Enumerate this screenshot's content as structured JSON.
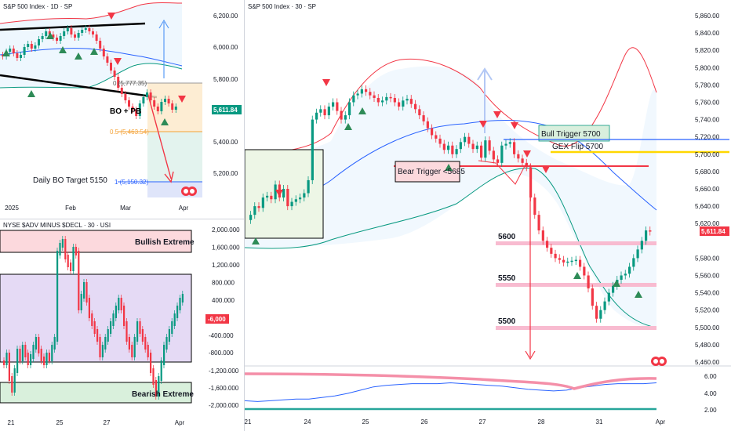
{
  "panes": {
    "daily": {
      "title": "S&P 500 Index · 1D · SP",
      "price_ticks": [
        "6,200.00",
        "6,000.00",
        "5,800.00",
        "5,400.00",
        "5,200.00"
      ],
      "time_ticks": [
        "2025",
        "Feb",
        "Mar",
        "Apr"
      ],
      "current_price": "5,611.84",
      "annotations": {
        "bo_pb": "BO + PB",
        "fib_0": "0 (5,777.35)",
        "fib_05": "0.5 (5,463.54)",
        "fib_1": "1 (5,150.32)",
        "target": "Daily BO Target 5150"
      }
    },
    "adv": {
      "title": "NYSE $ADV MINUS $DECL · 30 · USI",
      "value_ticks": [
        "2,000.000",
        "1,600.000",
        "1,200.000",
        "800.000",
        "400.000",
        "-400.000",
        "-800.000",
        "-1,200.000",
        "-1,600.000",
        "-2,000.000"
      ],
      "time_ticks": [
        "21",
        "25",
        "27",
        "Apr"
      ],
      "current_value": "-6,000",
      "zones": {
        "bullish": "Bullish Extreme",
        "bearish": "Bearish Extreme"
      }
    },
    "intraday": {
      "title": "S&P 500 Index · 30 · SP",
      "price_ticks": [
        "5,860.00",
        "5,840.00",
        "5,820.00",
        "5,800.00",
        "5,780.00",
        "5,760.00",
        "5,740.00",
        "5,720.00",
        "5,700.00",
        "5,680.00",
        "5,660.00",
        "5,640.00",
        "5,620.00",
        "5,580.00",
        "5,560.00",
        "5,540.00",
        "5,520.00",
        "5,500.00",
        "5,480.00",
        "5,460.00"
      ],
      "osc_ticks": [
        "6.00",
        "4.00",
        "2.00"
      ],
      "time_ticks": [
        "21",
        "24",
        "25",
        "26",
        "27",
        "28",
        "31",
        "Apr"
      ],
      "current_price": "5,611.84",
      "levels": {
        "bull_trigger": "Bull Trigger 5700",
        "gex_flip": "GEX Flip 5700",
        "bear_trigger": "Bear Trigger <5685",
        "l5600": "5600",
        "l5550": "5550",
        "l5500": "5500"
      }
    }
  },
  "colors": {
    "up": "#089981",
    "down": "#f23645",
    "blue_line": "#2962ff",
    "yellow_line": "#ffd700",
    "pink_level": "#f8bbd0",
    "grid": "#f0f3fa",
    "axis_text": "#131722"
  },
  "chart_data": [
    {
      "type": "candlestick",
      "title": "S&P 500 Index · 1D · SP",
      "ylim": [
        5100,
        6300
      ],
      "levels": [
        5777.35,
        5463.54,
        5150.32
      ],
      "last": 5611.84
    },
    {
      "type": "bar",
      "title": "NYSE $ADV MINUS $DECL · 30 · USI",
      "ylim": [
        -2200,
        2200
      ],
      "last": -6000
    },
    {
      "type": "candlestick",
      "title": "S&P 500 Index · 30 · SP",
      "ylim": [
        5450,
        5870
      ],
      "levels": [
        5700,
        5700,
        5685,
        5600,
        5550,
        5500
      ],
      "last": 5611.84,
      "closes": [
        5630,
        5640,
        5638,
        5650,
        5652,
        5648,
        5665,
        5650,
        5660,
        5640,
        5645,
        5648,
        5650,
        5655,
        5670,
        5740,
        5748,
        5752,
        5745,
        5755,
        5760,
        5750,
        5740,
        5745,
        5760,
        5768,
        5770,
        5775,
        5772,
        5768,
        5765,
        5760,
        5762,
        5766,
        5765,
        5760,
        5755,
        5762,
        5764,
        5758,
        5752,
        5745,
        5738,
        5730,
        5722,
        5718,
        5712,
        5705,
        5710,
        5700,
        5706,
        5714,
        5720,
        5712,
        5706,
        5710,
        5696,
        5716,
        5704,
        5694,
        5690,
        5710,
        5712,
        5714,
        5700,
        5695,
        5690,
        5685,
        5650,
        5630,
        5612,
        5600,
        5592,
        5585,
        5580,
        5578,
        5575,
        5576,
        5577,
        5578,
        5570,
        5560,
        5545,
        5525,
        5510,
        5520,
        5530,
        5540,
        5548,
        5555,
        5560,
        5562,
        5570,
        5580,
        5590,
        5600,
        5612,
        5611.84
      ],
      "osc_line": [
        3.2,
        3.1,
        3.2,
        3.3,
        3.4,
        3.4,
        3.6,
        3.8,
        4.1,
        4.5,
        4.9,
        5.1,
        5.2,
        5.3,
        5.3,
        5.3,
        5.4,
        5.3,
        5.2,
        5.1,
        5.0,
        4.8,
        4.6,
        4.5,
        4.4,
        4.5,
        4.8,
        5.0,
        5.2,
        5.3,
        5.3,
        5.3,
        5.4
      ],
      "osc_ylim": [
        1.6,
        6.8
      ]
    }
  ]
}
